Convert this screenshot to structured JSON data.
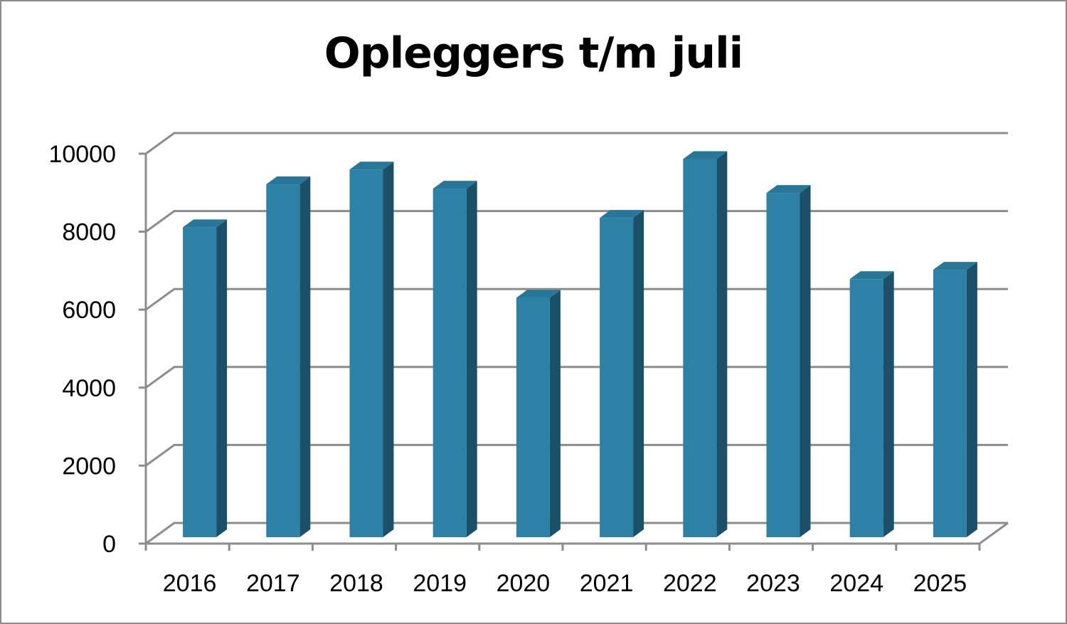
{
  "chart_data": {
    "type": "bar",
    "style": "3d-column",
    "title": "Opleggers t/m juli",
    "xlabel": "",
    "ylabel": "",
    "categories": [
      "2016",
      "2017",
      "2018",
      "2019",
      "2020",
      "2021",
      "2022",
      "2023",
      "2024",
      "2025"
    ],
    "values": [
      7950,
      9050,
      9430,
      8940,
      6140,
      8190,
      9700,
      8830,
      6620,
      6860
    ],
    "ylim": [
      0,
      10000
    ],
    "yticks": [
      "0",
      "2000",
      "4000",
      "6000",
      "8000",
      "10000"
    ],
    "grid": true,
    "legend": "none",
    "colors": {
      "bar_front": "#2e81a6",
      "bar_side": "#1c5069",
      "bar_top": "#2a7699",
      "gridline": "#8c8c8c"
    }
  }
}
